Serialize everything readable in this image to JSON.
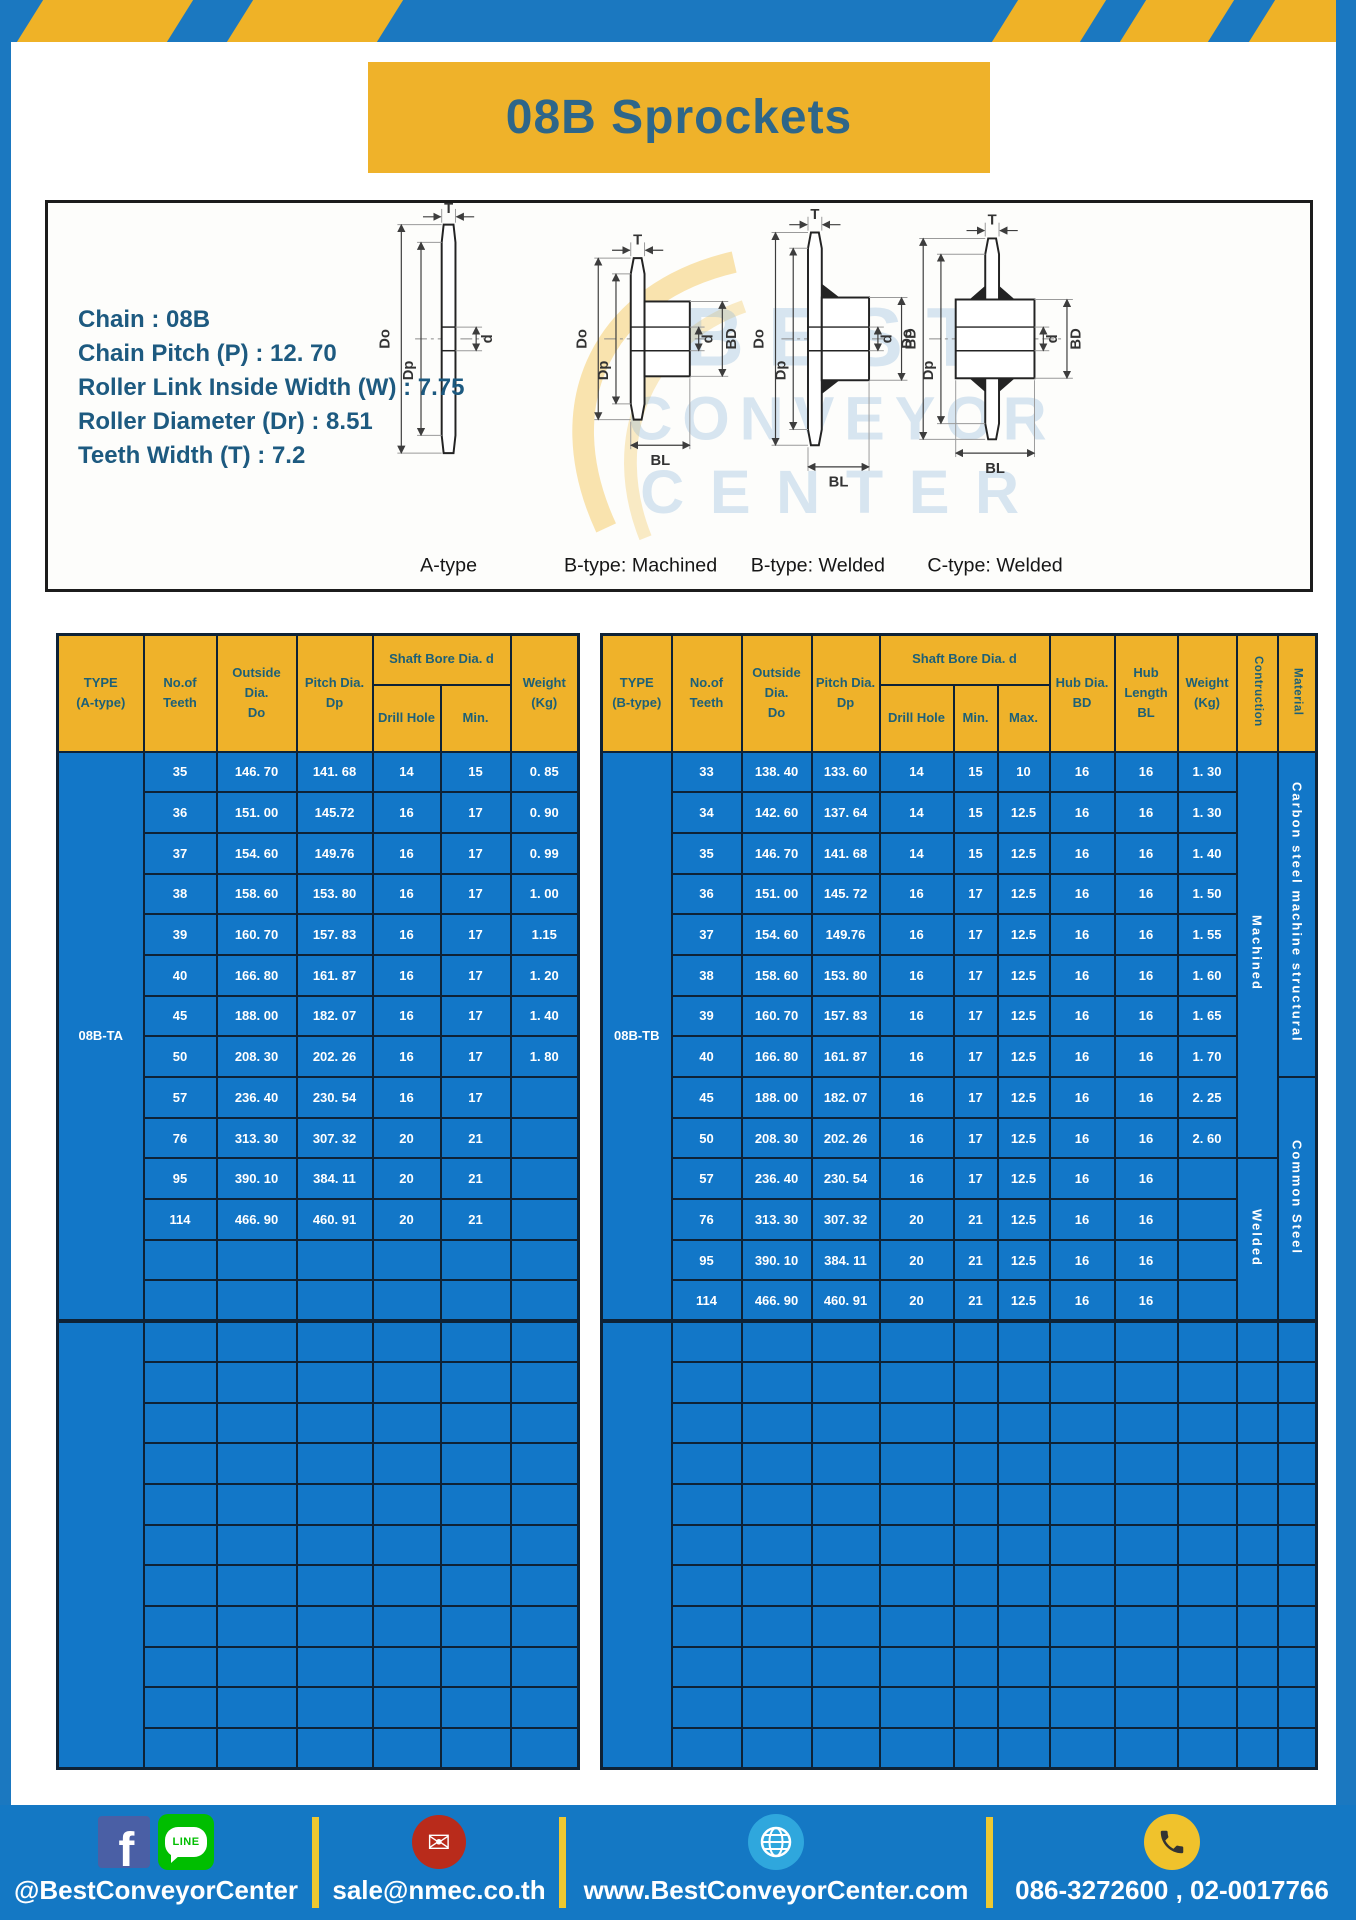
{
  "title": "08B Sprockets",
  "specs": {
    "lines": [
      "Chain : 08B",
      "Chain Pitch (P) : 12. 70",
      "Roller Link Inside Width (W) : 7.75",
      "Roller Diameter (Dr) : 8.51",
      "Teeth Width (T) : 7.2"
    ]
  },
  "watermark": {
    "line1": "BEST",
    "line2": "CONVEYOR",
    "line3": "CENTER"
  },
  "diagrams": {
    "labels": [
      "A-type",
      "B-type: Machined",
      "B-type: Welded",
      "C-type: Welded"
    ],
    "dims": {
      "t": "T",
      "do": "Do",
      "dp": "Dp",
      "d": "d",
      "bd": "BD",
      "bl": "BL"
    }
  },
  "table_a": {
    "headers": {
      "type_l1": "TYPE",
      "type_l2": "(A-type)",
      "teeth_l1": "No.of",
      "teeth_l2": "Teeth",
      "outside_l1": "Outside",
      "outside_l2": "Dia.",
      "outside_l3": "Do",
      "pitch_l1": "Pitch Dia.",
      "pitch_l2": "Dp",
      "shaft_bore": "Shaft Bore Dia. d",
      "drill": "Drill Hole",
      "min": "Min.",
      "weight_l1": "Weight",
      "weight_l2": "(Kg)"
    },
    "type_value": "08B-TA",
    "rows": [
      [
        "35",
        "146. 70",
        "141. 68",
        "14",
        "15",
        "0. 85"
      ],
      [
        "36",
        "151. 00",
        "145.72",
        "16",
        "17",
        "0. 90"
      ],
      [
        "37",
        "154. 60",
        "149.76",
        "16",
        "17",
        "0. 99"
      ],
      [
        "38",
        "158. 60",
        "153. 80",
        "16",
        "17",
        "1. 00"
      ],
      [
        "39",
        "160. 70",
        "157. 83",
        "16",
        "17",
        "1.15"
      ],
      [
        "40",
        "166. 80",
        "161. 87",
        "16",
        "17",
        "1. 20"
      ],
      [
        "45",
        "188. 00",
        "182. 07",
        "16",
        "17",
        "1. 40"
      ],
      [
        "50",
        "208. 30",
        "202. 26",
        "16",
        "17",
        "1. 80"
      ],
      [
        "57",
        "236. 40",
        "230. 54",
        "16",
        "17",
        ""
      ],
      [
        "76",
        "313. 30",
        "307. 32",
        "20",
        "21",
        ""
      ],
      [
        "95",
        "390. 10",
        "384. 11",
        "20",
        "21",
        ""
      ],
      [
        "114",
        "466. 90",
        "460. 91",
        "20",
        "21",
        ""
      ]
    ],
    "empty_rows_block1": 2,
    "empty_rows_block2": 11
  },
  "table_b": {
    "headers": {
      "type_l1": "TYPE",
      "type_l2": "(B-type)",
      "teeth_l1": "No.of",
      "teeth_l2": "Teeth",
      "outside_l1": "Outside",
      "outside_l2": "Dia.",
      "outside_l3": "Do",
      "pitch_l1": "Pitch Dia.",
      "pitch_l2": "Dp",
      "shaft_bore": "Shaft Bore Dia. d",
      "drill": "Drill Hole",
      "min": "Min.",
      "max": "Max.",
      "hub_dia_l1": "Hub Dia.",
      "hub_dia_l2": "BD",
      "hub_len_l1": "Hub",
      "hub_len_l2": "Length",
      "hub_len_l3": "BL",
      "weight_l1": "Weight",
      "weight_l2": "(Kg)",
      "construction": "Contruction",
      "material": "Material"
    },
    "type_value": "08B-TB",
    "rows": [
      [
        "33",
        "138. 40",
        "133. 60",
        "14",
        "15",
        "10",
        "16",
        "16",
        "1. 30"
      ],
      [
        "34",
        "142. 60",
        "137. 64",
        "14",
        "15",
        "12.5",
        "16",
        "16",
        "1. 30"
      ],
      [
        "35",
        "146. 70",
        "141. 68",
        "14",
        "15",
        "12.5",
        "16",
        "16",
        "1. 40"
      ],
      [
        "36",
        "151. 00",
        "145. 72",
        "16",
        "17",
        "12.5",
        "16",
        "16",
        "1. 50"
      ],
      [
        "37",
        "154. 60",
        "149.76",
        "16",
        "17",
        "12.5",
        "16",
        "16",
        "1. 55"
      ],
      [
        "38",
        "158. 60",
        "153. 80",
        "16",
        "17",
        "12.5",
        "16",
        "16",
        "1. 60"
      ],
      [
        "39",
        "160. 70",
        "157. 83",
        "16",
        "17",
        "12.5",
        "16",
        "16",
        "1. 65"
      ],
      [
        "40",
        "166. 80",
        "161. 87",
        "16",
        "17",
        "12.5",
        "16",
        "16",
        "1. 70"
      ],
      [
        "45",
        "188. 00",
        "182. 07",
        "16",
        "17",
        "12.5",
        "16",
        "16",
        "2. 25"
      ],
      [
        "50",
        "208. 30",
        "202. 26",
        "16",
        "17",
        "12.5",
        "16",
        "16",
        "2. 60"
      ],
      [
        "57",
        "236. 40",
        "230. 54",
        "16",
        "17",
        "12.5",
        "16",
        "16",
        ""
      ],
      [
        "76",
        "313. 30",
        "307. 32",
        "20",
        "21",
        "12.5",
        "16",
        "16",
        ""
      ],
      [
        "95",
        "390. 10",
        "384. 11",
        "20",
        "21",
        "12.5",
        "16",
        "16",
        ""
      ],
      [
        "114",
        "466. 90",
        "460. 91",
        "20",
        "21",
        "12.5",
        "16",
        "16",
        ""
      ]
    ],
    "construction_groups": [
      {
        "label": "Machined",
        "rows": 10
      },
      {
        "label": "Welded",
        "rows": 4
      }
    ],
    "material_groups": [
      {
        "label": "Carbon steel  machine structural",
        "rows": 8
      },
      {
        "label": "Common  Steel",
        "rows": 6
      }
    ],
    "empty_rows_block2": 11
  },
  "footer": {
    "social_handle": "@BestConveyorCenter",
    "line_label": "LINE",
    "email": "sale@nmec.co.th",
    "website": "www.BestConveyorCenter.com",
    "phones": "086-3272600 , 02-0017766"
  },
  "colors": {
    "frame_blue": "#1b78c0",
    "cell_blue": "#1277c8",
    "accent_yellow": "#efb22a",
    "border_navy": "#0e2236",
    "header_text": "#1d6077",
    "title_text": "#2e6689",
    "footer_blue": "#1478c4",
    "facebook_blue": "#4a5fa5",
    "line_green": "#00be00",
    "email_red": "#b92b1b",
    "globe_blue": "#2fa7dd",
    "phone_yellow": "#f0c22c"
  }
}
